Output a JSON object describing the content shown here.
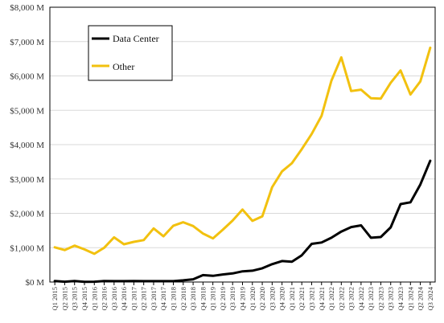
{
  "chart_data": {
    "type": "line",
    "title": "",
    "xlabel": "",
    "ylabel": "",
    "ylim": [
      0,
      8000
    ],
    "yticks": [
      0,
      1000,
      2000,
      3000,
      4000,
      5000,
      6000,
      7000,
      8000
    ],
    "ytick_labels": [
      "$0 M",
      "$1,000 M",
      "$2,000 M",
      "$3,000 M",
      "$4,000 M",
      "$5,000 M",
      "$6,000 M",
      "$7,000 M",
      "$8,000 M"
    ],
    "grid": "horizontal",
    "legend_position": "top-left",
    "categories": [
      "Q1 2015",
      "Q2 2015",
      "Q3 2015",
      "Q4 2015",
      "Q1 2016",
      "Q2 2016",
      "Q3 2016",
      "Q4 2016",
      "Q1 2017",
      "Q2 2017",
      "Q3 2017",
      "Q4 2017",
      "Q1 2018",
      "Q2 2018",
      "Q3 2018",
      "Q4 2018",
      "Q1 2019",
      "Q2 2019",
      "Q3 2019",
      "Q4 2019",
      "Q1 2020",
      "Q2 2020",
      "Q3 2020",
      "Q4 2020",
      "Q1 2021",
      "Q2 2021",
      "Q3 2021",
      "Q4 2021",
      "Q1 2022",
      "Q2 2022",
      "Q3 2022",
      "Q4 2022",
      "Q1 2023",
      "Q2 2023",
      "Q3 2023",
      "Q4 2023",
      "Q1 2024",
      "Q2 2024",
      "Q3 2024"
    ],
    "series": [
      {
        "name": "Data Center",
        "color": "#000000",
        "values": [
          30,
          10,
          30,
          5,
          10,
          30,
          25,
          25,
          30,
          25,
          25,
          25,
          25,
          50,
          80,
          200,
          180,
          220,
          250,
          310,
          330,
          400,
          520,
          610,
          590,
          780,
          1110,
          1150,
          1290,
          1470,
          1600,
          1650,
          1290,
          1310,
          1590,
          2270,
          2320,
          2840,
          3530
        ]
      },
      {
        "name": "Other",
        "color": "#f2c10f",
        "values": [
          1010,
          930,
          1060,
          950,
          820,
          1000,
          1300,
          1100,
          1170,
          1220,
          1560,
          1330,
          1640,
          1740,
          1630,
          1410,
          1270,
          1520,
          1790,
          2110,
          1780,
          1910,
          2760,
          3220,
          3460,
          3870,
          4310,
          4840,
          5860,
          6540,
          5560,
          5600,
          5350,
          5340,
          5800,
          6160,
          5460,
          5840,
          6820
        ]
      }
    ]
  }
}
